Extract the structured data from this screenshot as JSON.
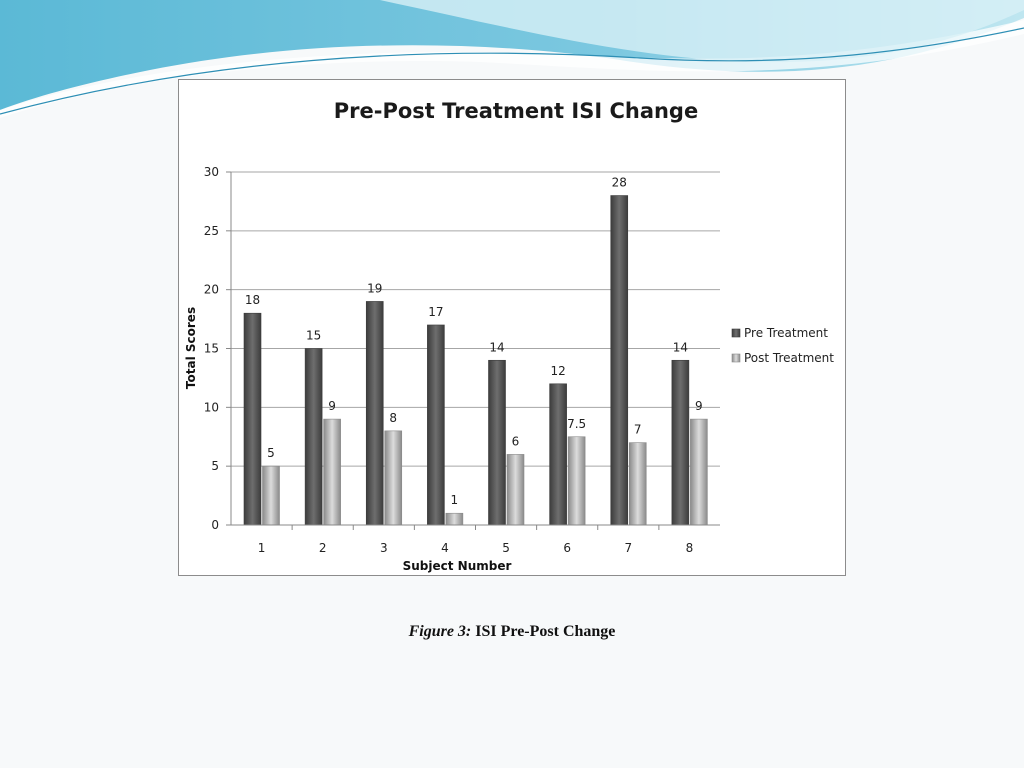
{
  "colors": {
    "pre_dark": "#3c3c3c",
    "pre_light": "#6e6e6e",
    "post_dark": "#8a8a8a",
    "post_light": "#dcdcdc",
    "gridline": "#a6a6a6",
    "wave_teal": "#3fa8c8",
    "wave_light": "#9fd8e8"
  },
  "caption": {
    "prefix": "Figure 3:",
    "text": "ISI Pre-Post Change"
  },
  "chart_data": {
    "type": "bar",
    "title": "Pre-Post Treatment  ISI Change",
    "xlabel": "Subject Number",
    "ylabel": "Total Scores",
    "categories": [
      "1",
      "2",
      "3",
      "4",
      "5",
      "6",
      "7",
      "8"
    ],
    "series": [
      {
        "name": "Pre Treatment",
        "values": [
          18,
          15,
          19,
          17,
          14,
          12,
          28,
          14
        ]
      },
      {
        "name": "Post Treatment",
        "values": [
          5,
          9,
          8,
          1,
          6,
          7.5,
          7,
          9
        ]
      }
    ],
    "ylim": [
      0,
      30
    ],
    "yticks": [
      0,
      5,
      10,
      15,
      20,
      25,
      30
    ],
    "grid": true,
    "legend_position": "right"
  }
}
